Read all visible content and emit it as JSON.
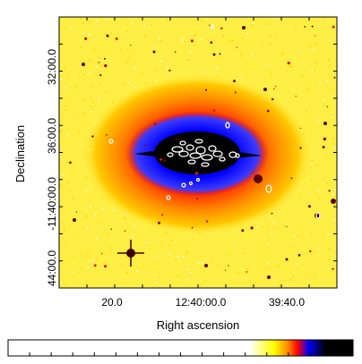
{
  "chart_data": {
    "type": "heatmap",
    "title": "",
    "xlabel": "Right ascension",
    "ylabel": "Declination",
    "x_ticks": [
      "20.0",
      "12:40:00.0",
      "39:40.0"
    ],
    "y_ticks": [
      "32:00.0",
      "36:00.0",
      "-11:40:00.0",
      "44:00.0"
    ],
    "colormap": [
      "#ffffff",
      "#ffff00",
      "#ff8c00",
      "#ff0000",
      "#0000ff",
      "#000000"
    ],
    "colormap_names": [
      "white",
      "yellow",
      "orange",
      "red",
      "blue",
      "black"
    ],
    "contour_color": "#ffffff",
    "background_color": "#ffee44",
    "frame_color": "#000000",
    "colorbar_orientation": "horizontal",
    "colorbar_placement": "bottom",
    "colorbar_ticks": 16,
    "tick_marks_per_side": 10,
    "grid": false,
    "sources": {
      "galaxy": "elliptical, black core with blue and red halo",
      "bright_star": "lower-left of galaxy, with diffraction spikes",
      "contours": "radio contour clusters over the galaxy core, with isolated contours nearby"
    }
  }
}
